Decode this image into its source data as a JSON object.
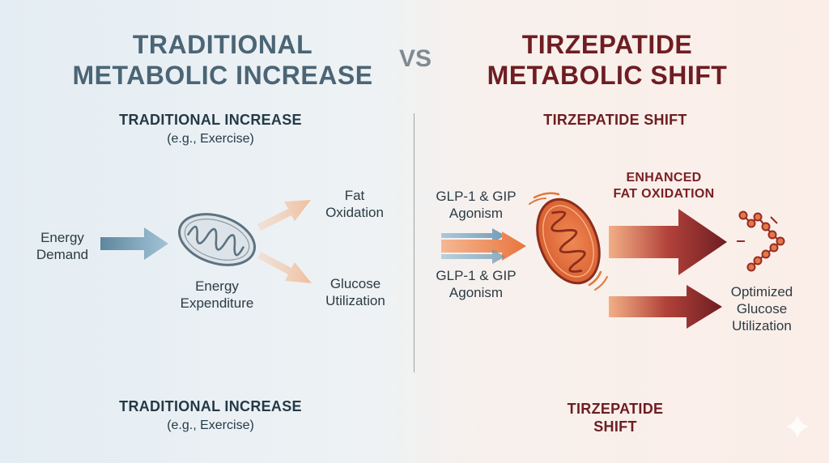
{
  "header": {
    "left_title_line1": "TRADITIONAL",
    "left_title_line2": "METABOLIC INCREASE",
    "vs": "VS",
    "right_title_line1": "TIRZEPATIDE",
    "right_title_line2": "METABOLIC SHIFT"
  },
  "left": {
    "subtitle": "TRADITIONAL INCREASE",
    "subtitle_note": "(e.g., Exercise)",
    "input_label_line1": "Energy",
    "input_label_line2": "Demand",
    "organelle_label_line1": "Energy",
    "organelle_label_line2": "Expenditure",
    "output1_line1": "Fat",
    "output1_line2": "Oxidation",
    "output2_line1": "Glucose",
    "output2_line2": "Utilization",
    "footer": "TRADITIONAL INCREASE",
    "footer_note": "(e.g., Exercise)"
  },
  "right": {
    "subtitle": "TIRZEPATIDE SHIFT",
    "input1_line1": "GLP-1 & GIP",
    "input1_line2": "Agonism",
    "input2_line1": "GLP-1 & GIP",
    "input2_line2": "Agonism",
    "output1_line1": "ENHANCED",
    "output1_line2": "FAT OXIDATION",
    "output2_line1": "Optimized",
    "output2_line2": "Glucose",
    "output2_line3": "Utilization",
    "footer_line1": "TIRZEPATIDE",
    "footer_line2": "SHIFT"
  },
  "colors": {
    "left_accent": "#4b6575",
    "right_accent": "#6e1d22",
    "left_arrow": "#6f9ab3",
    "left_output_arrow": "#f2c6a6",
    "mito_right": "#e4683a",
    "right_arrow": "#7a1f23"
  },
  "icons": {
    "left_organelle": "mitochondrion-icon",
    "right_organelle": "mitochondrion-icon",
    "fat_molecule": "fatty-acid-chain-icon",
    "corner_mark": "sparkle-icon"
  }
}
